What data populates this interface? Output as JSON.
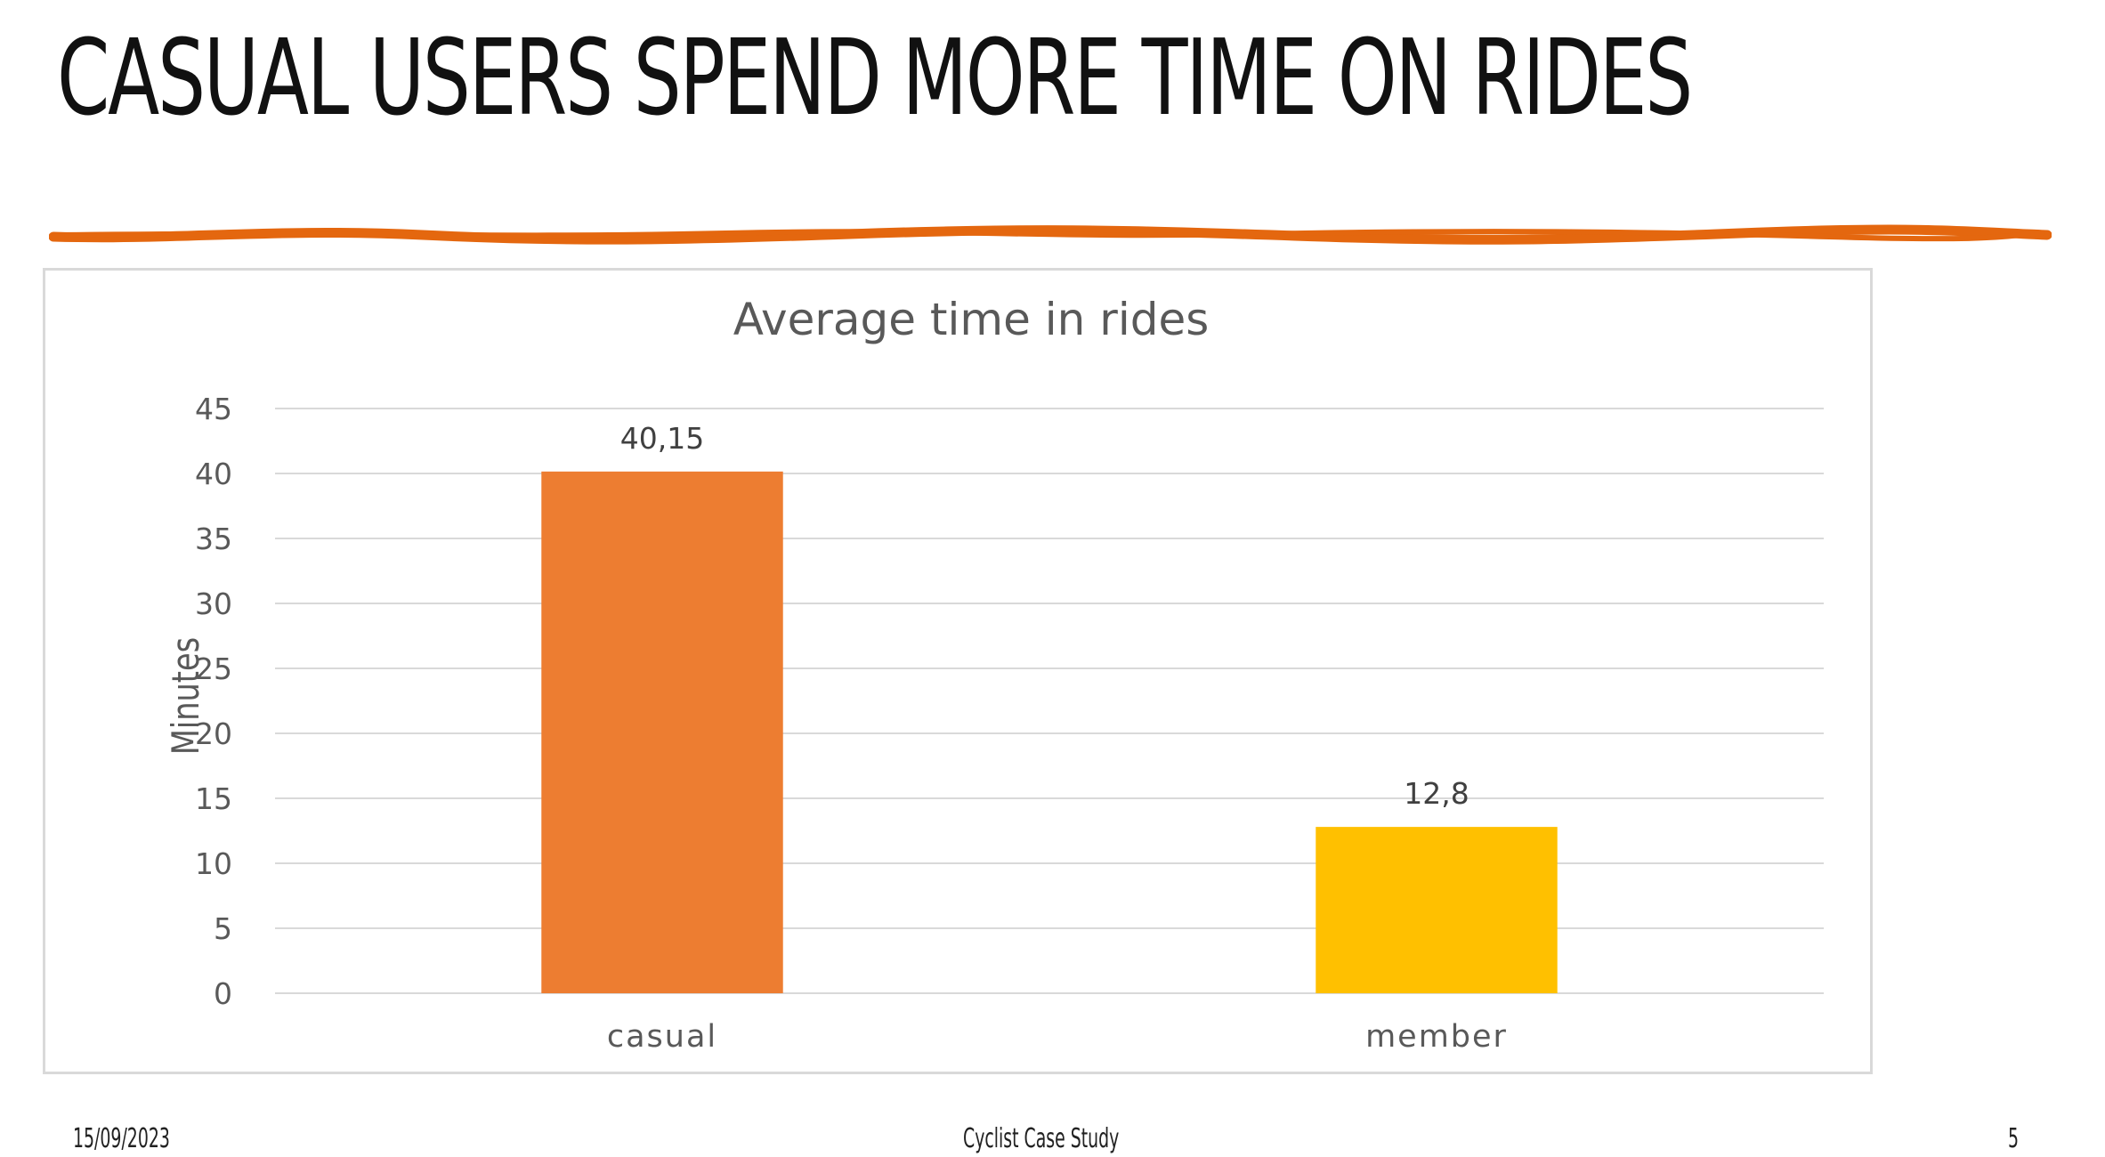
{
  "slide": {
    "title": "CASUAL USERS SPEND MORE TIME ON RIDES",
    "accent_color": "#e4670f"
  },
  "footer": {
    "date": "15/09/2023",
    "center": "Cyclist Case Study",
    "page": "5"
  },
  "chart_data": {
    "type": "bar",
    "title": "Average time in rides",
    "xlabel": "",
    "ylabel": "Minutes",
    "categories": [
      "casual",
      "member"
    ],
    "values": [
      40.15,
      12.8
    ],
    "data_labels": [
      "40,15",
      "12,8"
    ],
    "bar_colors": [
      "#ed7d31",
      "#ffc000"
    ],
    "ylim": [
      0,
      45
    ],
    "yticks": [
      0,
      5,
      10,
      15,
      20,
      25,
      30,
      35,
      40,
      45
    ],
    "grid": true,
    "legend": "none"
  }
}
